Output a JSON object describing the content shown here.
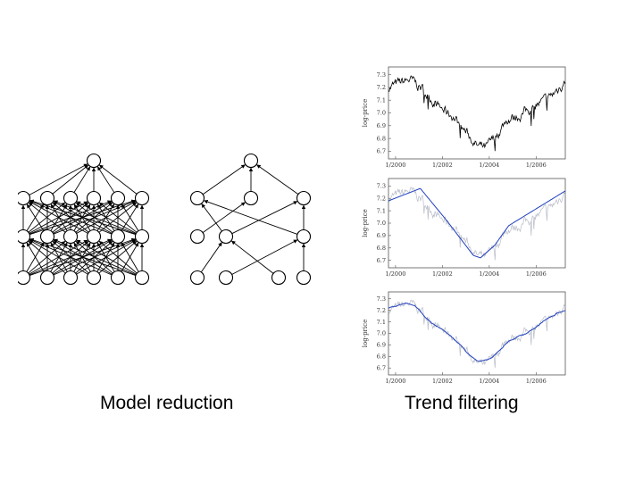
{
  "captions": {
    "left": "Model reduction",
    "right": "Trend filtering"
  },
  "networks": {
    "dense": {
      "layers": [
        6,
        6,
        6,
        1
      ]
    },
    "reduced": {
      "layers": [
        4,
        3,
        3,
        1
      ]
    }
  },
  "plots": {
    "ylabel": "log-price",
    "yticks": [
      "7.3",
      "7.2",
      "7.1",
      "7.0",
      "6.9",
      "6.8",
      "6.7"
    ],
    "xticks": [
      "1/2000",
      "1/2002",
      "1/2004",
      "1/2006"
    ],
    "trend_color": "#1f3fbf",
    "raw_color": "#000000",
    "faint_color": "#b8bcc8"
  }
}
